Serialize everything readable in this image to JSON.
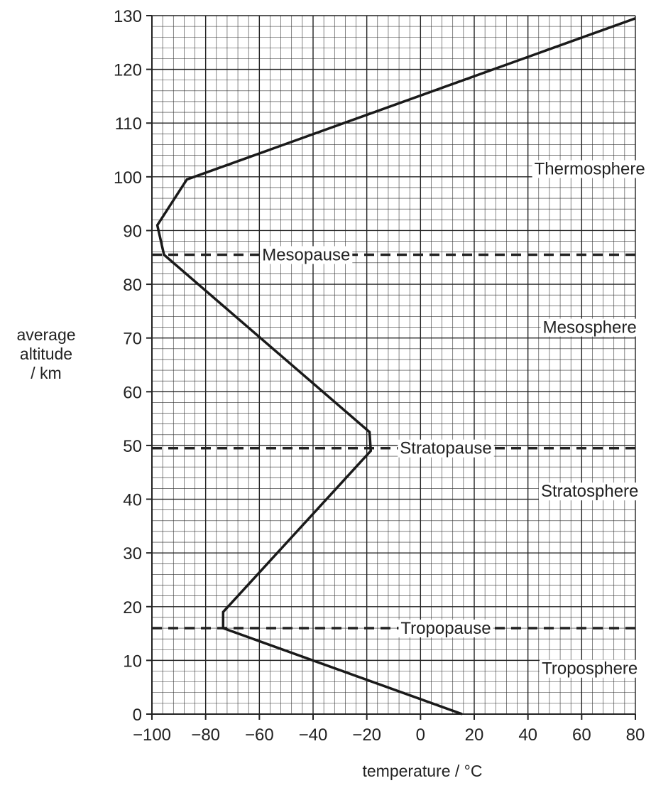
{
  "chart_data": {
    "type": "line",
    "title": "",
    "xlabel": "temperature / °C",
    "ylabel": [
      "average",
      "altitude",
      "/ km"
    ],
    "xlim": [
      -100,
      80
    ],
    "ylim": [
      0,
      130
    ],
    "x_ticks": [
      -100,
      -80,
      -60,
      -40,
      -20,
      0,
      20,
      40,
      60,
      80
    ],
    "x_tick_labels": [
      "−100",
      "−80",
      "−60",
      "−40",
      "−20",
      "0",
      "20",
      "40",
      "60",
      "80"
    ],
    "y_ticks": [
      0,
      10,
      20,
      30,
      40,
      50,
      60,
      70,
      80,
      90,
      100,
      110,
      120,
      130
    ],
    "grid": true,
    "series": [
      {
        "x": [
          15.5,
          -73.5,
          -73.5,
          -18.5,
          -19,
          -95.5,
          -98,
          -87,
          80
        ],
        "y": [
          0,
          16,
          19,
          49,
          52.5,
          85.5,
          91,
          99.5,
          129.5
        ]
      }
    ],
    "reference_lines": [
      {
        "label": "Tropopause",
        "y": 16
      },
      {
        "label": "Stratopause",
        "y": 49.5
      },
      {
        "label": "Mesopause",
        "y": 85.5
      }
    ],
    "region_labels": [
      {
        "label": "Troposphere",
        "x": 63,
        "y": 8.5
      },
      {
        "label": "Stratosphere",
        "x": 63,
        "y": 41.5
      },
      {
        "label": "Mesosphere",
        "x": 63,
        "y": 72
      },
      {
        "label": "Thermosphere",
        "x": 63,
        "y": 101.5
      }
    ]
  }
}
